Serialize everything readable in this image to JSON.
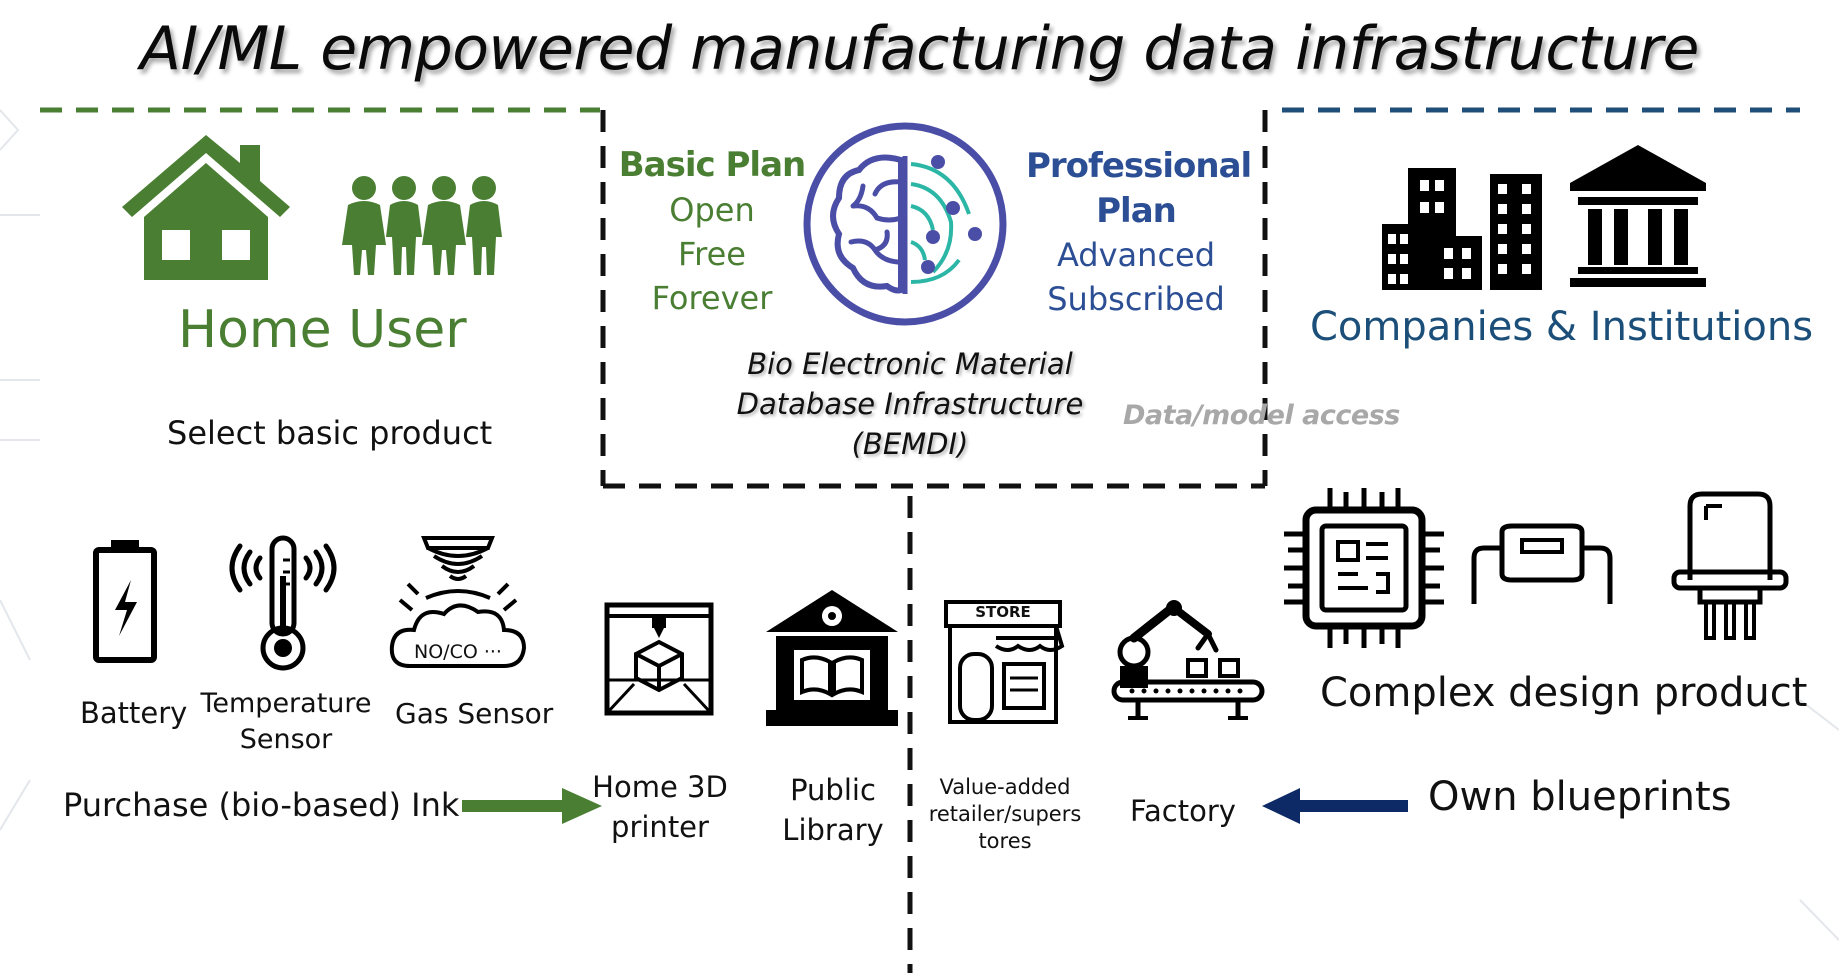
{
  "title": "AI/ML empowered manufacturing data infrastructure",
  "center": {
    "basic_plan": {
      "name": "Basic Plan",
      "lines": [
        "Open",
        "Free",
        "Forever"
      ]
    },
    "professional_plan": {
      "name_line1": "Professional",
      "name_line2": "Plan",
      "lines": [
        "Advanced",
        "Subscribed"
      ]
    },
    "database_lines": [
      "Bio Electronic Material",
      "Database Infrastructure",
      "(BEMDI)"
    ],
    "access_label": "Data/model access"
  },
  "home_user": {
    "label": "Home User",
    "select_label": "Select basic product",
    "products": [
      {
        "label_line1": "Battery",
        "label_line2": ""
      },
      {
        "label_line1": "Temperature",
        "label_line2": "Sensor"
      },
      {
        "label_line1": "Gas Sensor",
        "label_line2": ""
      }
    ],
    "gas_cloud_text": "NO/CO ···",
    "purchase_label": "Purchase (bio-based) Ink"
  },
  "printing": {
    "home_printer_line1": "Home 3D",
    "home_printer_line2": "printer",
    "library_line1": "Public",
    "library_line2": "Library",
    "retailer_lines": [
      "Value-added",
      "retailer/supers",
      "tores"
    ],
    "store_sign": "STORE",
    "factory_label": "Factory"
  },
  "companies": {
    "label": "Companies & Institutions",
    "complex_label": "Complex design product",
    "blueprints_label": "Own blueprints"
  },
  "colors": {
    "green": "#4a7f33",
    "navy_dash": "#1f4e79",
    "arrow_navy": "#0d2a66",
    "plan_blue": "#2c4e94",
    "brain_outline": "#4a4ea6",
    "brain_teal": "#2bb6a6",
    "access_gray": "#a8a8a8"
  },
  "icons": [
    "house-icon",
    "family-icon",
    "brain-circuit-icon",
    "buildings-icon",
    "institution-icon",
    "battery-icon",
    "thermometer-icon",
    "gas-sensor-icon",
    "3d-printer-icon",
    "library-icon",
    "store-icon",
    "robot-arm-icon",
    "chip-icon",
    "resistor-icon",
    "transistor-icon",
    "arrow-right-icon",
    "arrow-left-icon"
  ]
}
